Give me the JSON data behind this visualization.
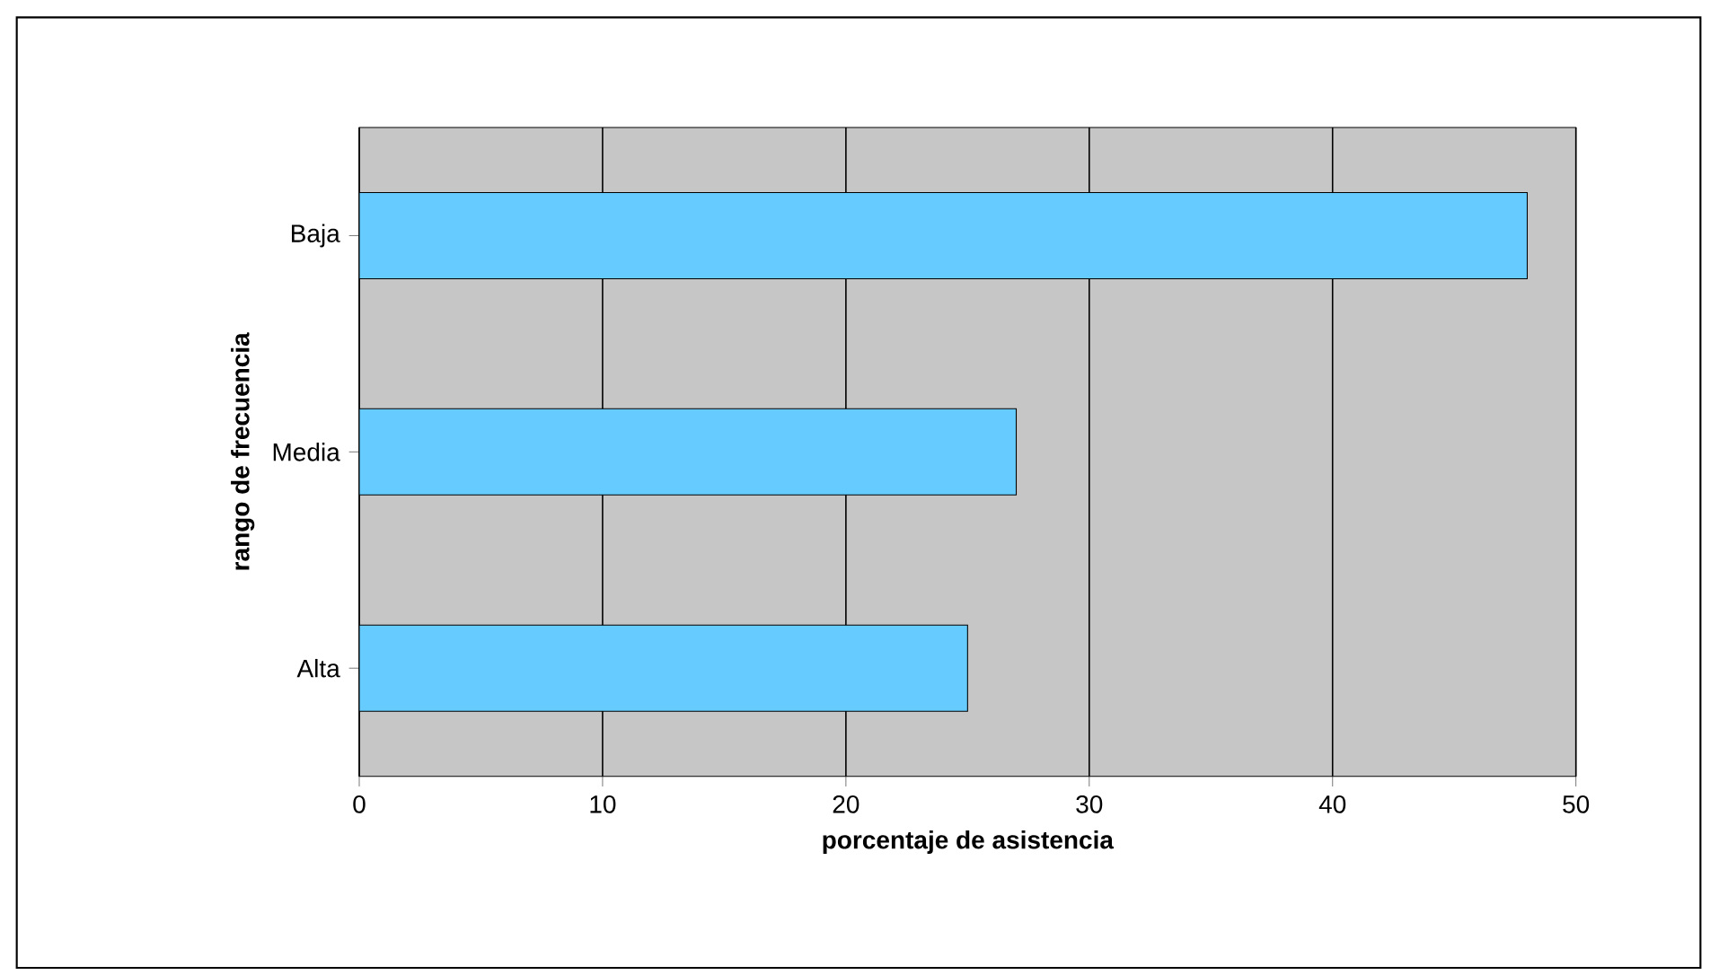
{
  "chart_data": {
    "type": "bar",
    "orientation": "horizontal",
    "xlabel": "porcentaje de asistencia",
    "ylabel": "rango de frecuencia",
    "categories": [
      "Baja",
      "Media",
      "Alta"
    ],
    "values": [
      48,
      27,
      25
    ],
    "color": "#66ccff",
    "xlim": [
      0,
      50
    ],
    "xticks": [
      0,
      10,
      20,
      30,
      40,
      50
    ],
    "grid": "x"
  }
}
